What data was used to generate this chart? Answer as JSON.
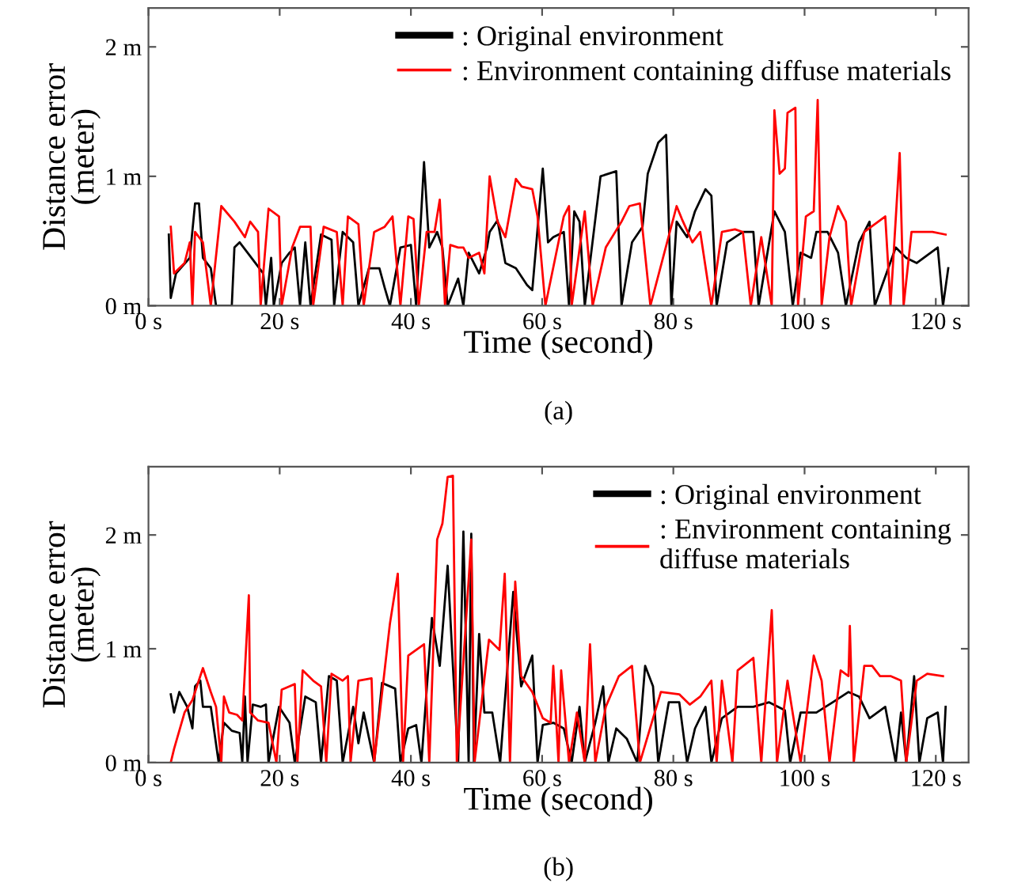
{
  "chart_data": [
    {
      "type": "line",
      "xlabel": "Time (second)",
      "ylabel": "Distance error\n(meter)",
      "annotations": [
        "(a)"
      ],
      "legend": "top right",
      "grid": false,
      "marker": "none",
      "line_style": "solid",
      "xlim": [
        0,
        125
      ],
      "ylim": [
        0,
        2.3
      ],
      "xticks": [
        {
          "value": 0,
          "label": "0 s"
        },
        {
          "value": 20,
          "label": "20 s"
        },
        {
          "value": 40,
          "label": "40 s"
        },
        {
          "value": 60,
          "label": "60 s"
        },
        {
          "value": 80,
          "label": "80 s"
        },
        {
          "value": 100,
          "label": "100 s"
        },
        {
          "value": 120,
          "label": "120 s"
        }
      ],
      "yticks": [
        {
          "value": 0,
          "label": "0 m"
        },
        {
          "value": 1,
          "label": "1 m"
        },
        {
          "value": 2,
          "label": "2 m"
        }
      ],
      "series": [
        {
          "name": ": Original environment",
          "color": "#000000",
          "x": [
            3.1,
            3.4,
            4.2,
            6.3,
            7.1,
            7.7,
            8.3,
            9.5,
            10.3,
            12.7,
            13.1,
            13.9,
            15.1,
            17.5,
            17.9,
            18.7,
            19.1,
            20.3,
            21.5,
            22.3,
            23.1,
            23.9,
            24.7,
            26.3,
            27.9,
            28.3,
            29.6,
            31.2,
            32,
            33.6,
            35.2,
            36,
            36.8,
            38.4,
            40,
            40.8,
            42,
            42.8,
            44,
            44.8,
            45.6,
            47.2,
            48,
            48.8,
            50.4,
            51.6,
            52,
            53.2,
            54.4,
            56,
            57.7,
            58.5,
            60.1,
            60.9,
            61.7,
            63.3,
            64.1,
            64.9,
            65.7,
            66.5,
            68.9,
            71.3,
            72.1,
            73.7,
            75.3,
            76.1,
            77.7,
            78.9,
            79.7,
            80.5,
            82.1,
            83.3,
            84.9,
            85.8,
            86.6,
            88.2,
            90.6,
            92.2,
            93,
            95.4,
            97,
            98.2,
            99.4,
            101,
            101.8,
            103.5,
            105.1,
            106.3,
            108.3,
            109.9,
            110.7,
            113.9,
            115.5,
            117.1,
            120.3,
            121.1,
            121.9
          ],
          "values": [
            0.55,
            0.06,
            0.25,
            0.37,
            0.79,
            0.79,
            0.37,
            0.29,
            0,
            0,
            0.45,
            0.49,
            0.41,
            0.25,
            0,
            0.37,
            0,
            0.33,
            0.41,
            0.45,
            0,
            0.49,
            0,
            0.55,
            0.51,
            0,
            0.57,
            0.49,
            0,
            0.29,
            0.29,
            0.14,
            0,
            0.45,
            0.47,
            0,
            1.11,
            0.45,
            0.57,
            0.45,
            0,
            0.21,
            0,
            0.41,
            0.25,
            0.45,
            0.57,
            0.66,
            0.33,
            0.29,
            0.16,
            0.12,
            1.06,
            0.49,
            0.53,
            0.57,
            0,
            0.73,
            0.65,
            0,
            1.0,
            1.04,
            0,
            0.49,
            0.61,
            1.02,
            1.26,
            1.32,
            0,
            0.65,
            0.53,
            0.73,
            0.9,
            0.85,
            0,
            0.49,
            0.57,
            0.57,
            0,
            0.73,
            0.57,
            0,
            0.41,
            0.37,
            0.57,
            0.57,
            0.41,
            0,
            0.49,
            0.65,
            0,
            0.45,
            0.37,
            0.33,
            0.45,
            0,
            0.29
          ]
        },
        {
          "name": ": Environment containing diffuse materials",
          "color": "#ff0000",
          "x": [
            3.4,
            3.9,
            5.5,
            6.3,
            6.7,
            7.1,
            8.3,
            9.5,
            11.1,
            13.1,
            14.7,
            15.5,
            16.7,
            17.1,
            18.3,
            19.9,
            20.3,
            21.9,
            23.1,
            24.7,
            25.1,
            26.7,
            28.7,
            29.6,
            30.4,
            32,
            32.8,
            34.4,
            36,
            37.2,
            38.4,
            39.6,
            40.4,
            41.2,
            42.4,
            43.6,
            44.4,
            45.2,
            46,
            47.2,
            48,
            48.8,
            50.4,
            51.2,
            52,
            53.2,
            54.4,
            56,
            56.9,
            58.5,
            59.3,
            60.5,
            63.3,
            64.1,
            64.5,
            66.5,
            67.7,
            69.7,
            72.1,
            73.3,
            74.9,
            76.5,
            80.5,
            81.3,
            82.9,
            84.1,
            85.8,
            87.4,
            89.4,
            90.6,
            91.8,
            93.4,
            95,
            95.4,
            96.2,
            97,
            97.4,
            98.6,
            99,
            100.2,
            101.4,
            102,
            102.6,
            103.8,
            105.1,
            106.3,
            107.1,
            109.1,
            112.3,
            113.1,
            114.5,
            115.1,
            116.3,
            119.5,
            121.5
          ],
          "values": [
            0.61,
            0.25,
            0.33,
            0.49,
            0,
            0.57,
            0.49,
            0,
            0.77,
            0.65,
            0.53,
            0.65,
            0.57,
            0,
            0.75,
            0.69,
            0,
            0.45,
            0.61,
            0.61,
            0,
            0.61,
            0.57,
            0,
            0.69,
            0.63,
            0,
            0.57,
            0.61,
            0.69,
            0,
            0.69,
            0.67,
            0,
            0.57,
            0.57,
            0.82,
            0,
            0.47,
            0.45,
            0.45,
            0.37,
            0.41,
            0.25,
            1.0,
            0.65,
            0.53,
            0.98,
            0.92,
            0.9,
            0.69,
            0,
            0.69,
            0.77,
            0,
            0.73,
            0,
            0.45,
            0.65,
            0.77,
            0.79,
            0,
            0.77,
            0.67,
            0.49,
            0.57,
            0,
            0.57,
            0.59,
            0.57,
            0,
            0.53,
            0,
            1.51,
            1.02,
            1.06,
            1.49,
            1.53,
            0,
            0.69,
            0.73,
            1.59,
            0,
            0.53,
            0.77,
            0.65,
            0,
            0.57,
            0.69,
            0,
            1.18,
            0,
            0.57,
            0.57,
            0.55
          ]
        }
      ]
    },
    {
      "type": "line",
      "xlabel": "Time (second)",
      "ylabel": "Distance error\n(meter)",
      "annotations": [
        "(b)"
      ],
      "legend": "top right",
      "grid": false,
      "marker": "none",
      "line_style": "solid",
      "xlim": [
        0,
        125
      ],
      "ylim": [
        0,
        2.6
      ],
      "xticks": [
        {
          "value": 0,
          "label": "0 s"
        },
        {
          "value": 20,
          "label": "20 s"
        },
        {
          "value": 40,
          "label": "40 s"
        },
        {
          "value": 60,
          "label": "60 s"
        },
        {
          "value": 80,
          "label": "80 s"
        },
        {
          "value": 100,
          "label": "100 s"
        },
        {
          "value": 120,
          "label": "120 s"
        }
      ],
      "yticks": [
        {
          "value": 0,
          "label": "0 m"
        },
        {
          "value": 1,
          "label": "1 m"
        },
        {
          "value": 2,
          "label": "2 m"
        }
      ],
      "series": [
        {
          "name": ": Original environment",
          "color": "#000000",
          "x": [
            3.4,
            3.9,
            4.7,
            5.9,
            6.7,
            7.1,
            7.9,
            8.3,
            9.5,
            10.7,
            11.5,
            12.7,
            13.9,
            14.3,
            14.7,
            15.1,
            15.9,
            17.1,
            17.9,
            18.3,
            19.9,
            21.5,
            22.3,
            23.9,
            25.5,
            26.3,
            27.5,
            28.7,
            29.6,
            31.2,
            32,
            32.8,
            34.4,
            35.6,
            37.6,
            38.4,
            39.6,
            40.8,
            41.6,
            43.2,
            44.4,
            45.6,
            46.4,
            47.2,
            48,
            48.8,
            49.2,
            49.6,
            50.4,
            51.2,
            52.4,
            53.6,
            55.6,
            56.8,
            58.5,
            59.3,
            60.1,
            61.7,
            63.3,
            64.5,
            65.7,
            66.5,
            68.1,
            69.3,
            70.1,
            71.3,
            72.9,
            74.5,
            75.7,
            76.9,
            77.7,
            79.3,
            80.9,
            82.1,
            83.3,
            84.9,
            85.8,
            87.4,
            89.8,
            92.2,
            94.6,
            97,
            97.8,
            99.4,
            101.8,
            104.3,
            106.7,
            108.3,
            109.9,
            112.3,
            113.9,
            114.7,
            115.5,
            116.7,
            117.5,
            118.7,
            120.3,
            121.1,
            121.5
          ],
          "values": [
            0.6,
            0.44,
            0.62,
            0.49,
            0.3,
            0.67,
            0.72,
            0.49,
            0.49,
            0,
            0.35,
            0.28,
            0.26,
            0,
            0.58,
            0,
            0.51,
            0.49,
            0.51,
            0,
            0.49,
            0.35,
            0,
            0.58,
            0.53,
            0,
            0.76,
            0.72,
            0,
            0.49,
            0.17,
            0.44,
            0,
            0.7,
            0.65,
            0,
            0.3,
            0.33,
            0,
            1.27,
            0.85,
            1.73,
            0.85,
            0,
            2.03,
            0,
            2.01,
            0,
            1.13,
            0.44,
            0.44,
            0,
            1.5,
            0.67,
            0.94,
            0,
            0.33,
            0.35,
            0.3,
            0,
            0.49,
            0,
            0.35,
            0.67,
            0,
            0.3,
            0.21,
            0,
            0.85,
            0.67,
            0,
            0.53,
            0.53,
            0,
            0.3,
            0.49,
            0,
            0.39,
            0.49,
            0.49,
            0.53,
            0.46,
            0,
            0.44,
            0.44,
            0.53,
            0.62,
            0.58,
            0.39,
            0.49,
            0,
            0.44,
            0,
            0.76,
            0,
            0.39,
            0.44,
            0,
            0.49
          ]
        },
        {
          "name": ": Environment containing\ndiffuse materials",
          "color": "#ff0000",
          "x": [
            3.4,
            3.9,
            5.5,
            6.7,
            8.3,
            9.5,
            10.3,
            11.1,
            11.5,
            12.3,
            13.5,
            14.3,
            15.3,
            15.5,
            16.7,
            18.3,
            19.5,
            20.3,
            21.5,
            22.3,
            22.7,
            23.5,
            25.1,
            26.3,
            27.1,
            27.9,
            29.6,
            30.4,
            30.8,
            32,
            34,
            34.4,
            36.8,
            38,
            38.8,
            39.6,
            42,
            42.8,
            44,
            44.8,
            45.6,
            46.4,
            47,
            49.2,
            49.7,
            51.9,
            53.5,
            54.3,
            55.1,
            55.9,
            56.8,
            58.5,
            60.1,
            61.3,
            61.7,
            62.5,
            62.9,
            64.1,
            65.3,
            66.5,
            67.3,
            68.1,
            69.7,
            71.7,
            73.7,
            74.9,
            78.1,
            80.9,
            82.5,
            84.1,
            85.8,
            86.6,
            87.4,
            89,
            89.8,
            92.2,
            93.4,
            95,
            95.8,
            97.4,
            99.4,
            101.4,
            102.6,
            103.8,
            105.5,
            106.7,
            106.9,
            107.5,
            109.1,
            110.3,
            111.5,
            113.1,
            114.7,
            115.5,
            117.1,
            118.7,
            121.1
          ],
          "values": [
            0,
            0.12,
            0.44,
            0.55,
            0.83,
            0.62,
            0.49,
            0,
            0.58,
            0.44,
            0.42,
            0.37,
            1.47,
            0.44,
            0.37,
            0.35,
            0,
            0.64,
            0.67,
            0.69,
            0,
            0.81,
            0.72,
            0.67,
            0,
            0.78,
            0.72,
            0.76,
            0,
            0.72,
            0.74,
            0,
            1.22,
            1.66,
            0,
            0.94,
            1.04,
            0,
            1.96,
            2.1,
            2.51,
            2.52,
            0,
            1.96,
            0,
            1.08,
            0.99,
            1.66,
            0,
            1.59,
            0.76,
            0.62,
            0.39,
            0.35,
            0.85,
            0,
            0.81,
            0,
            0.44,
            0,
            1.04,
            0,
            0.49,
            0.76,
            0.85,
            0,
            0.62,
            0.6,
            0.51,
            0.58,
            0.72,
            0,
            0.72,
            0,
            0.81,
            0.92,
            0,
            1.34,
            0,
            0.72,
            0,
            0.94,
            0.72,
            0,
            0.81,
            0.76,
            1.2,
            0,
            0.85,
            0.85,
            0.76,
            0.76,
            0.72,
            0,
            0.72,
            0.78,
            0.76
          ]
        }
      ]
    }
  ]
}
